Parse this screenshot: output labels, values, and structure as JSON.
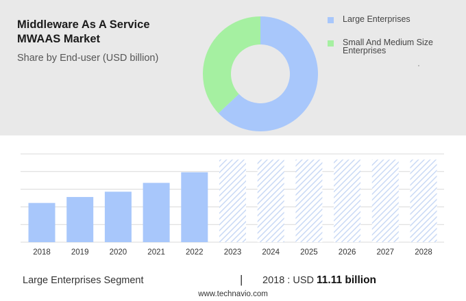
{
  "header": {
    "title": "Middleware As A Service MWAAS Market",
    "subtitle": "Share by End-user (USD billion)"
  },
  "colors": {
    "large": "#a8c7fb",
    "smb": "#a5f0a1",
    "hatch": "#c9d9f5",
    "grid": "#d8d8d8",
    "panel": "#e9e9e9"
  },
  "legend": [
    {
      "label": "Large Enterprises",
      "color": "#a8c7fb"
    },
    {
      "label": "Small And Medium Size Enterprises",
      "color": "#a5f0a1"
    }
  ],
  "chart_data": [
    {
      "type": "pie",
      "style": "donut",
      "labels": [
        "Large Enterprises",
        "Small And Medium Size Enterprises"
      ],
      "values": [
        63,
        37
      ],
      "unit": "%"
    },
    {
      "type": "bar",
      "categories": [
        "2018",
        "2019",
        "2020",
        "2021",
        "2022",
        "2023",
        "2024",
        "2025",
        "2026",
        "2027",
        "2028"
      ],
      "values": [
        11.11,
        12.8,
        14.3,
        16.8,
        19.8,
        23.4,
        23.4,
        23.4,
        23.4,
        23.4,
        23.4
      ],
      "forecast_from": "2023",
      "forecast_style": "hatched",
      "ylim": [
        0,
        25
      ],
      "grid": true,
      "y_tick_labels_shown": false
    }
  ],
  "footer": {
    "segment": "Large Enterprises Segment",
    "divider": "|",
    "value_prefix": "2018 : USD",
    "value": "11.11 billion"
  },
  "source": "www.technavio.com"
}
